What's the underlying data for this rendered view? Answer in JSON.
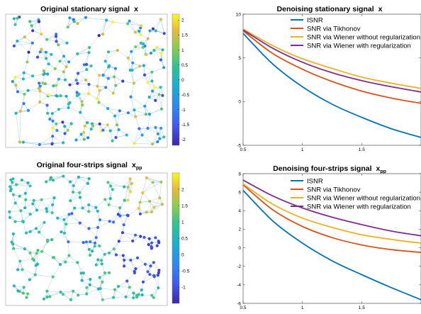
{
  "chart_data": [
    {
      "type": "graph-signal",
      "title": "Original stationary signal",
      "title_symbol": "x",
      "title_subscript": "",
      "colorbar": {
        "ticks": [
          "2",
          "1.5",
          "1",
          "0.5",
          "0",
          "-0.5",
          "-1",
          "-1.5",
          "-2"
        ],
        "range": [
          -2.2,
          2.2
        ]
      },
      "seed": 11,
      "pattern": "random"
    },
    {
      "type": "line",
      "title": "Denoising stationary signal",
      "title_symbol": "x",
      "title_subscript": "",
      "xlim": [
        0.5,
        2.0
      ],
      "ylim": [
        -5,
        10
      ],
      "x_ticks": [
        "0.5",
        "1",
        "1.5"
      ],
      "y_ticks": [
        "10",
        "5",
        "0",
        "-5"
      ],
      "series": [
        {
          "name": "ISNR",
          "color": "#0072BD",
          "x": [
            0.5,
            0.75,
            1.0,
            1.25,
            1.5,
            1.75,
            2.0
          ],
          "values": [
            7.8,
            4.3,
            1.7,
            -0.3,
            -1.8,
            -3.1,
            -4.1
          ]
        },
        {
          "name": "SNR via Tikhonov",
          "color": "#D95319",
          "x": [
            0.5,
            0.75,
            1.0,
            1.25,
            1.5,
            1.75,
            2.0
          ],
          "values": [
            8.1,
            5.5,
            3.7,
            2.3,
            1.2,
            0.4,
            -0.2
          ]
        },
        {
          "name": "SNR via Wiener without regularization",
          "color": "#EDB120",
          "x": [
            0.5,
            0.75,
            1.0,
            1.25,
            1.5,
            1.75,
            2.0
          ],
          "values": [
            8.3,
            6.4,
            4.9,
            3.8,
            2.8,
            2.1,
            1.5
          ]
        },
        {
          "name": "SNR via Wiener with regularization",
          "color": "#7E2F8E",
          "x": [
            0.5,
            0.75,
            1.0,
            1.25,
            1.5,
            1.75,
            2.0
          ],
          "values": [
            8.2,
            6.1,
            4.5,
            3.3,
            2.4,
            1.7,
            1.1
          ]
        }
      ]
    },
    {
      "type": "graph-signal",
      "title": "Original four-strips signal",
      "title_symbol": "x",
      "title_subscript": "pp",
      "colorbar": {
        "ticks": [
          "2",
          "1.5",
          "1",
          "0.5",
          "0",
          "-0.5",
          "-1"
        ],
        "range": [
          -1.5,
          2.5
        ]
      },
      "seed": 29,
      "pattern": "strips"
    },
    {
      "type": "line",
      "title": "Denoising four-strips signal",
      "title_symbol": "x",
      "title_subscript": "pp",
      "xlim": [
        0.5,
        2.0
      ],
      "ylim": [
        -6,
        8
      ],
      "x_ticks": [
        "0.5",
        "1",
        "1.5"
      ],
      "y_ticks": [
        "8",
        "6",
        "4",
        "2",
        "0",
        "-2",
        "-4",
        "-6"
      ],
      "series": [
        {
          "name": "ISNR",
          "color": "#0072BD",
          "x": [
            0.5,
            0.75,
            1.0,
            1.25,
            1.5,
            1.75,
            2.0
          ],
          "values": [
            6.2,
            2.9,
            0.5,
            -1.4,
            -2.9,
            -4.3,
            -5.6
          ]
        },
        {
          "name": "SNR via Tikhonov",
          "color": "#D95319",
          "x": [
            0.5,
            0.75,
            1.0,
            1.25,
            1.5,
            1.75,
            2.0
          ],
          "values": [
            6.8,
            4.1,
            2.3,
            1.1,
            0.3,
            -0.2,
            -0.5
          ]
        },
        {
          "name": "SNR via Wiener without regularization",
          "color": "#EDB120",
          "x": [
            0.5,
            0.75,
            1.0,
            1.25,
            1.5,
            1.75,
            2.0
          ],
          "values": [
            6.9,
            4.7,
            3.2,
            2.2,
            1.4,
            0.9,
            0.5
          ]
        },
        {
          "name": "SNR via Wiener with regularization",
          "color": "#7E2F8E",
          "x": [
            0.5,
            0.75,
            1.0,
            1.25,
            1.5,
            1.75,
            2.0
          ],
          "values": [
            7.3,
            5.6,
            4.3,
            3.3,
            2.5,
            1.8,
            1.3
          ]
        }
      ]
    }
  ]
}
